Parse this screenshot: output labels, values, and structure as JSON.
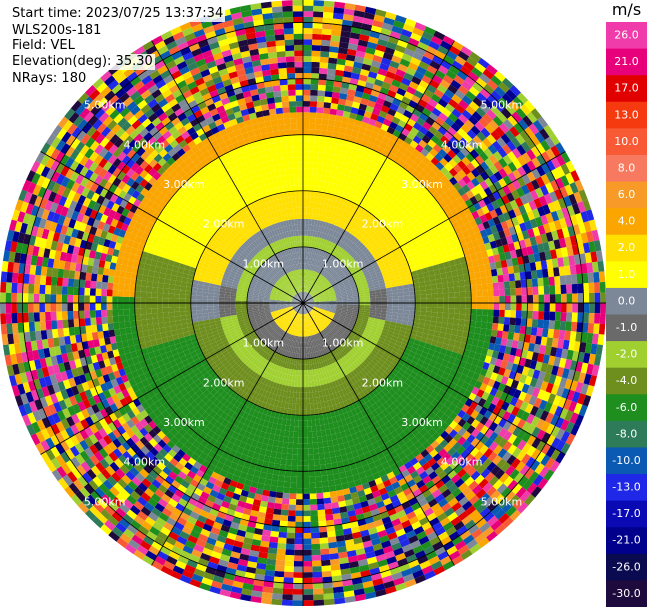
{
  "header": {
    "start_time": "Start time: 2023/07/25 13:37:34",
    "site": "WLS200s-181",
    "field": "Field: VEL",
    "elevation": "Elevation(deg): 35.30",
    "nrays": "NRays: 180"
  },
  "ppi": {
    "max_range_km": 5.4,
    "rings": [
      {
        "km": 1,
        "label": "1.00km"
      },
      {
        "km": 2,
        "label": "2.00km"
      },
      {
        "km": 3,
        "label": "3.00km"
      },
      {
        "km": 4,
        "label": "4.00km"
      },
      {
        "km": 5,
        "label": "5.00km"
      }
    ],
    "spoke_step_deg": 30,
    "label_azimuths_deg": [
      45,
      135,
      225,
      315
    ]
  },
  "colorbar": {
    "unit": "m/s",
    "ticks": [
      "26.0",
      "21.0",
      "17.0",
      "13.0",
      "10.0",
      "8.0",
      "6.0",
      "4.0",
      "2.0",
      "1.0",
      "0.0",
      "-1.0",
      "-2.0",
      "-4.0",
      "-6.0",
      "-8.0",
      "-10.0",
      "-13.0",
      "-17.0",
      "-21.0",
      "-26.0",
      "-30.0"
    ],
    "colors": [
      "#f03caa",
      "#e8007a",
      "#e00000",
      "#f53a10",
      "#f85a35",
      "#f77a60",
      "#f79a28",
      "#faa500",
      "#ffe000",
      "#ffff00",
      "#7c8898",
      "#6a6a6a",
      "#a0d030",
      "#6e8e1e",
      "#1e8e1e",
      "#2e7b5a",
      "#0a5ab4",
      "#1e28e6",
      "#0a0ab4",
      "#00008c",
      "#0a0a50",
      "#1e0a3c"
    ]
  }
}
